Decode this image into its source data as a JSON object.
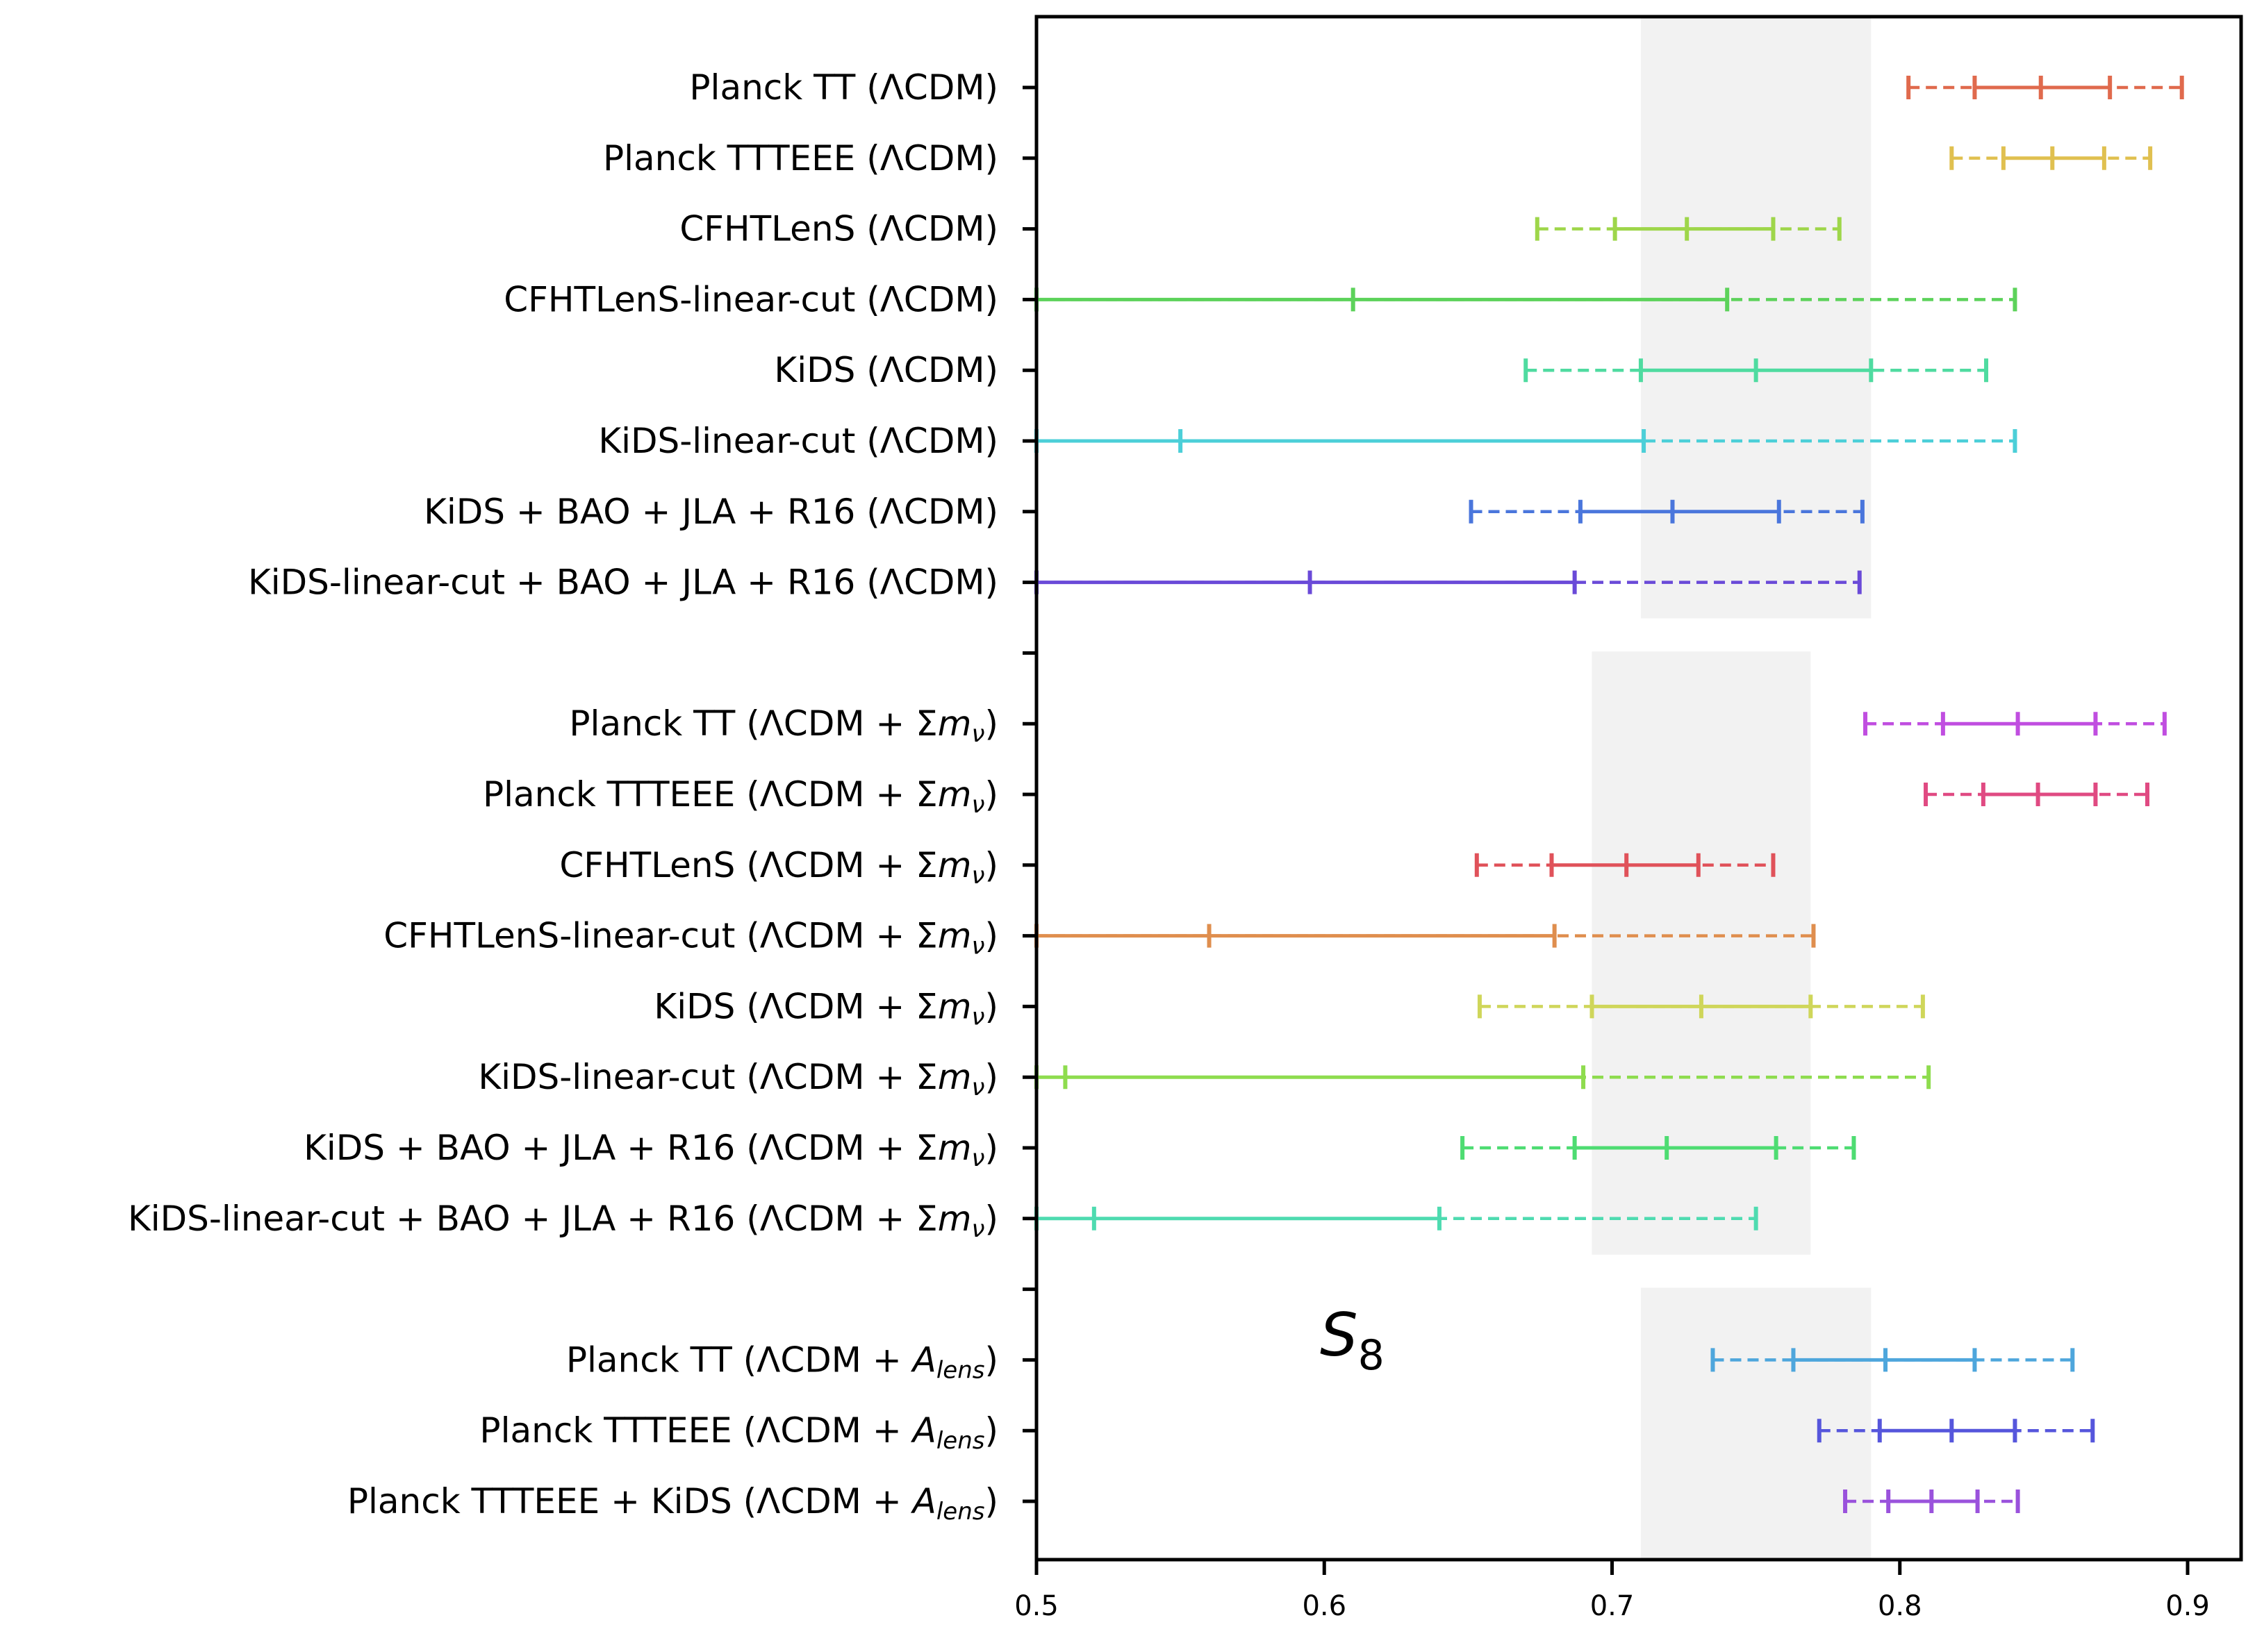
{
  "chart_data": {
    "type": "errorbar",
    "xlim": [
      0.5,
      0.92
    ],
    "x_ticks": [
      "0.5",
      "0.6",
      "0.7",
      "0.8",
      "0.9"
    ],
    "x_tick_values": [
      0.5,
      0.6,
      0.7,
      0.8,
      0.9
    ],
    "annotation": {
      "symbol": "S",
      "subscript": "8"
    },
    "bands": [
      {
        "from": 0.71,
        "to": 0.79,
        "rows": [
          0,
          7
        ]
      },
      {
        "from": 0.693,
        "to": 0.769,
        "rows": [
          9,
          16
        ]
      },
      {
        "from": 0.71,
        "to": 0.79,
        "rows": [
          18,
          20
        ]
      }
    ],
    "rows": [
      {
        "label": "Planck TT (ΛCDM)",
        "color": "#e06a4d",
        "lo95": 0.803,
        "lo68": 0.826,
        "center": 0.849,
        "hi68": 0.873,
        "hi95": 0.898,
        "solid_lo": 0.826
      },
      {
        "label": "Planck TTTEEE (ΛCDM)",
        "color": "#e0c050",
        "lo95": 0.818,
        "lo68": 0.836,
        "center": 0.853,
        "hi68": 0.871,
        "hi95": 0.887,
        "solid_lo": 0.836
      },
      {
        "label": "CFHTLenS (ΛCDM)",
        "color": "#9ed64a",
        "lo95": 0.674,
        "lo68": 0.701,
        "center": 0.726,
        "hi68": 0.756,
        "hi95": 0.779,
        "solid_lo": 0.701
      },
      {
        "label": "CFHTLenS-linear-cut (ΛCDM)",
        "color": "#5cd25a",
        "lo95": 0.5,
        "lo68": 0.61,
        "center": null,
        "hi68": 0.74,
        "hi95": 0.84,
        "solid_lo": 0.5
      },
      {
        "label": "KiDS (ΛCDM)",
        "color": "#4fdba0",
        "lo95": 0.67,
        "lo68": 0.71,
        "center": 0.75,
        "hi68": 0.79,
        "hi95": 0.83,
        "solid_lo": 0.71
      },
      {
        "label": "KiDS-linear-cut (ΛCDM)",
        "color": "#4ccfd8",
        "lo95": 0.5,
        "lo68": 0.55,
        "center": null,
        "hi68": 0.711,
        "hi95": 0.84,
        "solid_lo": 0.5
      },
      {
        "label": "KiDS + BAO +  JLA + R16 (ΛCDM)",
        "color": "#4a76dc",
        "lo95": 0.651,
        "lo68": 0.689,
        "center": 0.721,
        "hi68": 0.758,
        "hi95": 0.787,
        "solid_lo": 0.689
      },
      {
        "label": "KiDS-linear-cut + BAO +  JLA + R16 (ΛCDM)",
        "color": "#6a4ad8",
        "lo95": 0.5,
        "lo68": 0.595,
        "center": null,
        "hi68": 0.687,
        "hi95": 0.786,
        "solid_lo": 0.5
      },
      {
        "label": "",
        "color": "",
        "spacer": true
      },
      {
        "label": "Planck TT (ΛCDM + Σ",
        "label_tail": "mν",
        "color": "#c04ee0",
        "lo95": 0.788,
        "lo68": 0.815,
        "center": 0.841,
        "hi68": 0.868,
        "hi95": 0.892,
        "solid_lo": 0.815
      },
      {
        "label": "Planck TTTEEE (ΛCDM + Σ",
        "label_tail": "mν",
        "color": "#e04a82",
        "lo95": 0.809,
        "lo68": 0.829,
        "center": 0.848,
        "hi68": 0.868,
        "hi95": 0.886,
        "solid_lo": 0.829
      },
      {
        "label": "CFHTLenS (ΛCDM + Σ",
        "label_tail": "mν",
        "color": "#e0525a",
        "lo95": 0.653,
        "lo68": 0.679,
        "center": 0.705,
        "hi68": 0.73,
        "hi95": 0.756,
        "solid_lo": 0.679
      },
      {
        "label": "CFHTLenS-linear-cut (ΛCDM + Σ",
        "label_tail": "mν",
        "color": "#df8e4e",
        "lo95": 0.5,
        "lo68": 0.56,
        "center": null,
        "hi68": 0.68,
        "hi95": 0.77,
        "solid_lo": 0.5
      },
      {
        "label": "KiDS (ΛCDM + Σ",
        "label_tail": "mν",
        "color": "#cfd65a",
        "lo95": 0.654,
        "lo68": 0.693,
        "center": 0.731,
        "hi68": 0.769,
        "hi95": 0.808,
        "solid_lo": 0.693
      },
      {
        "label": "KiDS-linear-cut (ΛCDM + Σ",
        "label_tail": "mν",
        "color": "#8edc4e",
        "lo95": 0.5,
        "lo68": 0.51,
        "center": null,
        "hi68": 0.69,
        "hi95": 0.81,
        "solid_lo": 0.5
      },
      {
        "label": "KiDS + BAO +  JLA + R16 (ΛCDM + Σ",
        "label_tail": "mν",
        "color": "#4edc72",
        "lo95": 0.648,
        "lo68": 0.687,
        "center": 0.719,
        "hi68": 0.757,
        "hi95": 0.784,
        "solid_lo": 0.687
      },
      {
        "label": "KiDS-linear-cut + BAO +  JLA + R16 (ΛCDM + Σ",
        "label_tail": "mν",
        "color": "#4edbb0",
        "lo95": 0.5,
        "lo68": 0.52,
        "center": null,
        "hi68": 0.64,
        "hi95": 0.75,
        "solid_lo": 0.5
      },
      {
        "label": "",
        "color": "",
        "spacer": true
      },
      {
        "label": "Planck TT (ΛCDM + ",
        "label_tail": "Alens",
        "color": "#4ea6dc",
        "lo95": 0.735,
        "lo68": 0.763,
        "center": 0.795,
        "hi68": 0.826,
        "hi95": 0.86,
        "solid_lo": 0.763
      },
      {
        "label": "Planck TTTEEE (ΛCDM + ",
        "label_tail": "Alens",
        "color": "#5656dc",
        "lo95": 0.772,
        "lo68": 0.793,
        "center": 0.818,
        "hi68": 0.84,
        "hi95": 0.867,
        "solid_lo": 0.793
      },
      {
        "label": "Planck TTTEEE + KiDS (ΛCDM + ",
        "label_tail": "Alens",
        "color": "#9a52dc",
        "lo95": 0.781,
        "lo68": 0.796,
        "center": 0.811,
        "hi68": 0.827,
        "hi95": 0.841,
        "solid_lo": 0.796
      }
    ]
  }
}
